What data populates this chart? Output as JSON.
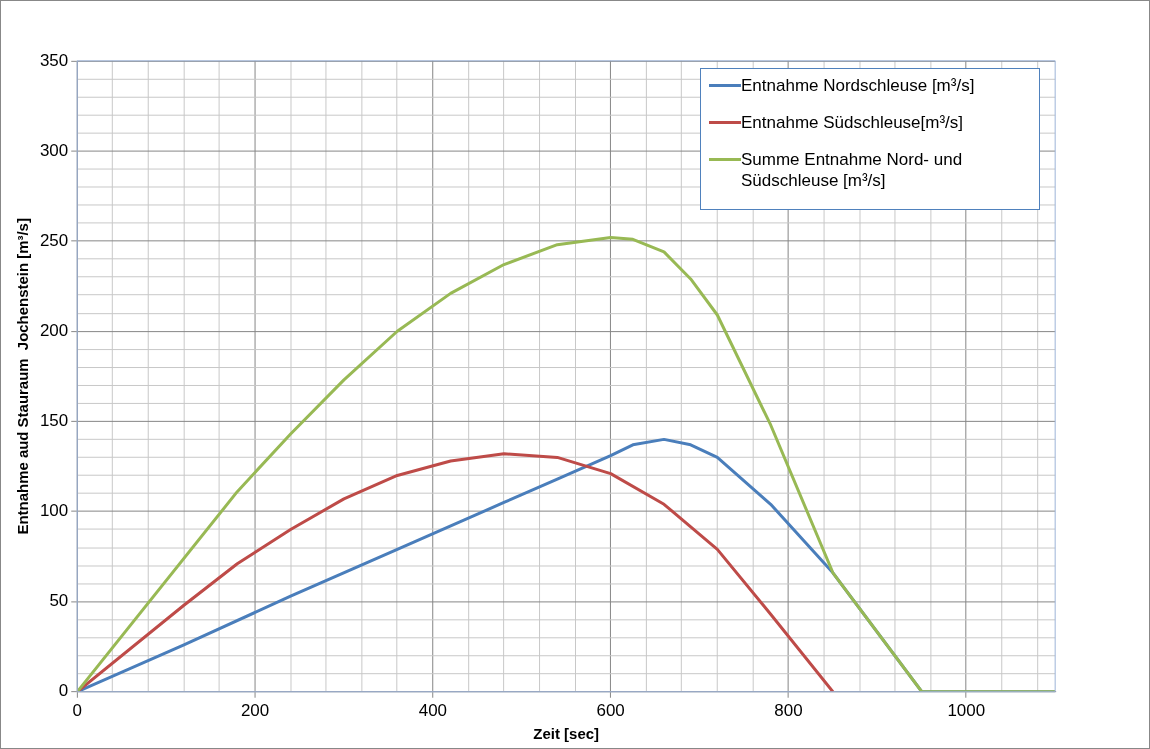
{
  "chart_data": {
    "type": "line",
    "xlabel": "Zeit [sec]",
    "ylabel": "Entnahme aud Stauraum  Jochenstein [m³/s]",
    "xlim": [
      0,
      1100
    ],
    "ylim": [
      0,
      350
    ],
    "xticks": [
      0,
      {
        "value": 40,
        "label": null
      },
      {
        "value": 80,
        "label": null
      },
      {
        "value": 120,
        "label": null
      },
      {
        "value": 160,
        "label": null
      },
      200,
      {
        "value": 240,
        "label": null
      },
      {
        "value": 280,
        "label": null
      },
      {
        "value": 320,
        "label": null
      },
      {
        "value": 360,
        "label": null
      },
      400,
      {
        "value": 440,
        "label": null
      },
      {
        "value": 480,
        "label": null
      },
      {
        "value": 520,
        "label": null
      },
      {
        "value": 560,
        "label": null
      },
      600,
      {
        "value": 640,
        "label": null
      },
      {
        "value": 680,
        "label": null
      },
      {
        "value": 720,
        "label": null
      },
      {
        "value": 760,
        "label": null
      },
      800,
      {
        "value": 840,
        "label": null
      },
      {
        "value": 880,
        "label": null
      },
      {
        "value": 920,
        "label": null
      },
      {
        "value": 960,
        "label": null
      },
      1000,
      {
        "value": 1040,
        "label": null
      },
      {
        "value": 1080,
        "label": null
      }
    ],
    "yticks": [
      0,
      {
        "value": 10,
        "label": null
      },
      {
        "value": 20,
        "label": null
      },
      {
        "value": 30,
        "label": null
      },
      {
        "value": 40,
        "label": null
      },
      50,
      {
        "value": 60,
        "label": null
      },
      {
        "value": 70,
        "label": null
      },
      {
        "value": 80,
        "label": null
      },
      {
        "value": 90,
        "label": null
      },
      100,
      {
        "value": 110,
        "label": null
      },
      {
        "value": 120,
        "label": null
      },
      {
        "value": 130,
        "label": null
      },
      {
        "value": 140,
        "label": null
      },
      150,
      {
        "value": 160,
        "label": null
      },
      {
        "value": 170,
        "label": null
      },
      {
        "value": 180,
        "label": null
      },
      {
        "value": 190,
        "label": null
      },
      200,
      {
        "value": 210,
        "label": null
      },
      {
        "value": 220,
        "label": null
      },
      {
        "value": 230,
        "label": null
      },
      {
        "value": 240,
        "label": null
      },
      250,
      {
        "value": 260,
        "label": null
      },
      {
        "value": 270,
        "label": null
      },
      {
        "value": 280,
        "label": null
      },
      {
        "value": 290,
        "label": null
      },
      300,
      {
        "value": 310,
        "label": null
      },
      {
        "value": 320,
        "label": null
      },
      {
        "value": 330,
        "label": null
      },
      {
        "value": 340,
        "label": null
      },
      350
    ],
    "grid": true,
    "legend": "top right",
    "marker": "none",
    "line_style": "solid",
    "series": [
      {
        "name": "Entnahme Nordschleuse [m³/s]",
        "color": "#4a7ebb",
        "x": [
          0,
          120,
          240,
          360,
          480,
          540,
          600,
          625,
          660,
          690,
          720,
          780,
          850,
          950,
          1100
        ],
        "values": [
          0,
          26,
          53,
          79,
          105,
          118,
          131,
          137,
          140,
          137,
          130,
          104,
          66,
          0,
          0
        ]
      },
      {
        "name": "Entnahme Südschleuse[m³/s]",
        "color": "#be4b48",
        "x": [
          0,
          120,
          180,
          240,
          300,
          360,
          420,
          480,
          540,
          600,
          660,
          720,
          780,
          850
        ],
        "values": [
          0,
          48,
          71,
          90,
          107,
          120,
          128,
          132,
          130,
          121,
          104,
          79,
          43,
          0
        ]
      },
      {
        "name": "Summe Entnahme Nord- und Südschleuse [m³/s]",
        "color": "#98b954",
        "x": [
          0,
          180,
          240,
          300,
          360,
          420,
          480,
          540,
          600,
          625,
          660,
          690,
          720,
          780,
          850,
          950,
          1100
        ],
        "values": [
          0,
          111,
          143,
          173,
          200,
          221,
          237,
          248,
          252,
          251,
          244,
          229,
          209,
          148,
          66,
          0,
          0
        ]
      }
    ]
  }
}
